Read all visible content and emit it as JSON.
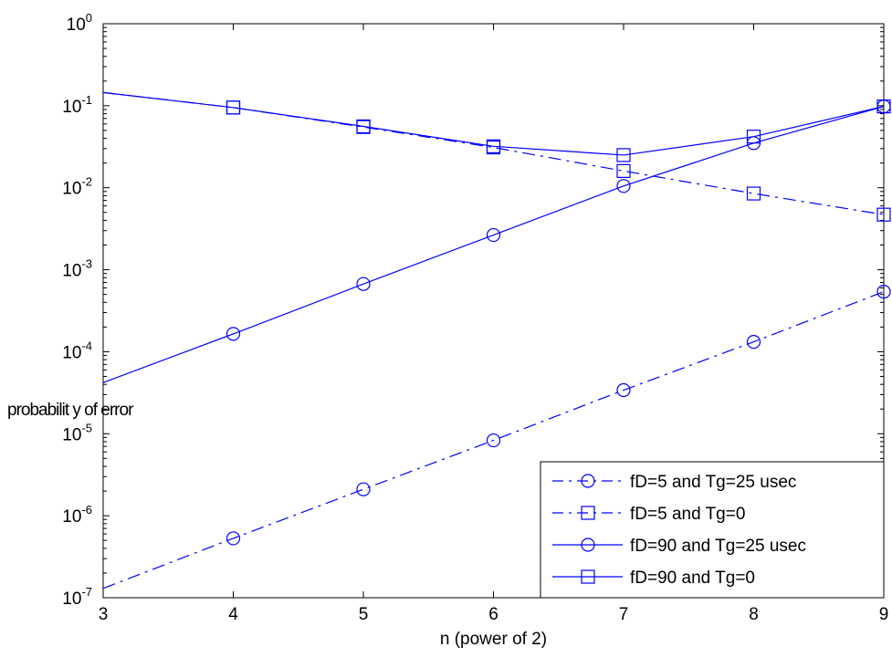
{
  "chart_data": {
    "type": "line",
    "xlabel": "n (power of 2)",
    "ylabel": "probabilit y of error",
    "x_ticks": [
      3,
      4,
      5,
      6,
      7,
      8,
      9
    ],
    "xlim": [
      3,
      9
    ],
    "y_scale": "log",
    "ylim": [
      1e-07,
      1
    ],
    "y_tick_exponents": [
      0,
      -1,
      -2,
      -3,
      -4,
      -5,
      -6,
      -7
    ],
    "y_tick_base": "10",
    "grid": false,
    "legend_position": "bottom-right",
    "line_color": "#0000ff",
    "series": [
      {
        "name": "fD=5 and Tg=25 usec",
        "marker": "circle",
        "line_style": "dashdot",
        "x": [
          3,
          4,
          5,
          6,
          7,
          8,
          9
        ],
        "y": [
          1.3e-07,
          5.3e-07,
          2.1e-06,
          8.3e-06,
          3.4e-05,
          0.000132,
          0.00054
        ],
        "markers_from_index": 1
      },
      {
        "name": "fD=5 and  Tg=0",
        "marker": "square",
        "line_style": "dashdot",
        "x": [
          3,
          4,
          5,
          6,
          7,
          8,
          9
        ],
        "y": [
          0.145,
          0.095,
          0.055,
          0.031,
          0.016,
          0.0085,
          0.0047
        ],
        "markers_from_index": 1
      },
      {
        "name": "fD=90 and Tg=25 usec",
        "marker": "circle",
        "line_style": "solid",
        "x": [
          3,
          4,
          5,
          6,
          7,
          8,
          9
        ],
        "y": [
          4.2e-05,
          0.000165,
          0.00067,
          0.00265,
          0.0105,
          0.035,
          0.098
        ],
        "markers_from_index": 1
      },
      {
        "name": "fD=90 and Tg=0",
        "marker": "square",
        "line_style": "solid",
        "x": [
          3,
          4,
          5,
          6,
          7,
          8,
          9
        ],
        "y": [
          0.145,
          0.095,
          0.056,
          0.032,
          0.025,
          0.042,
          0.098
        ],
        "markers_from_index": 1
      }
    ]
  }
}
